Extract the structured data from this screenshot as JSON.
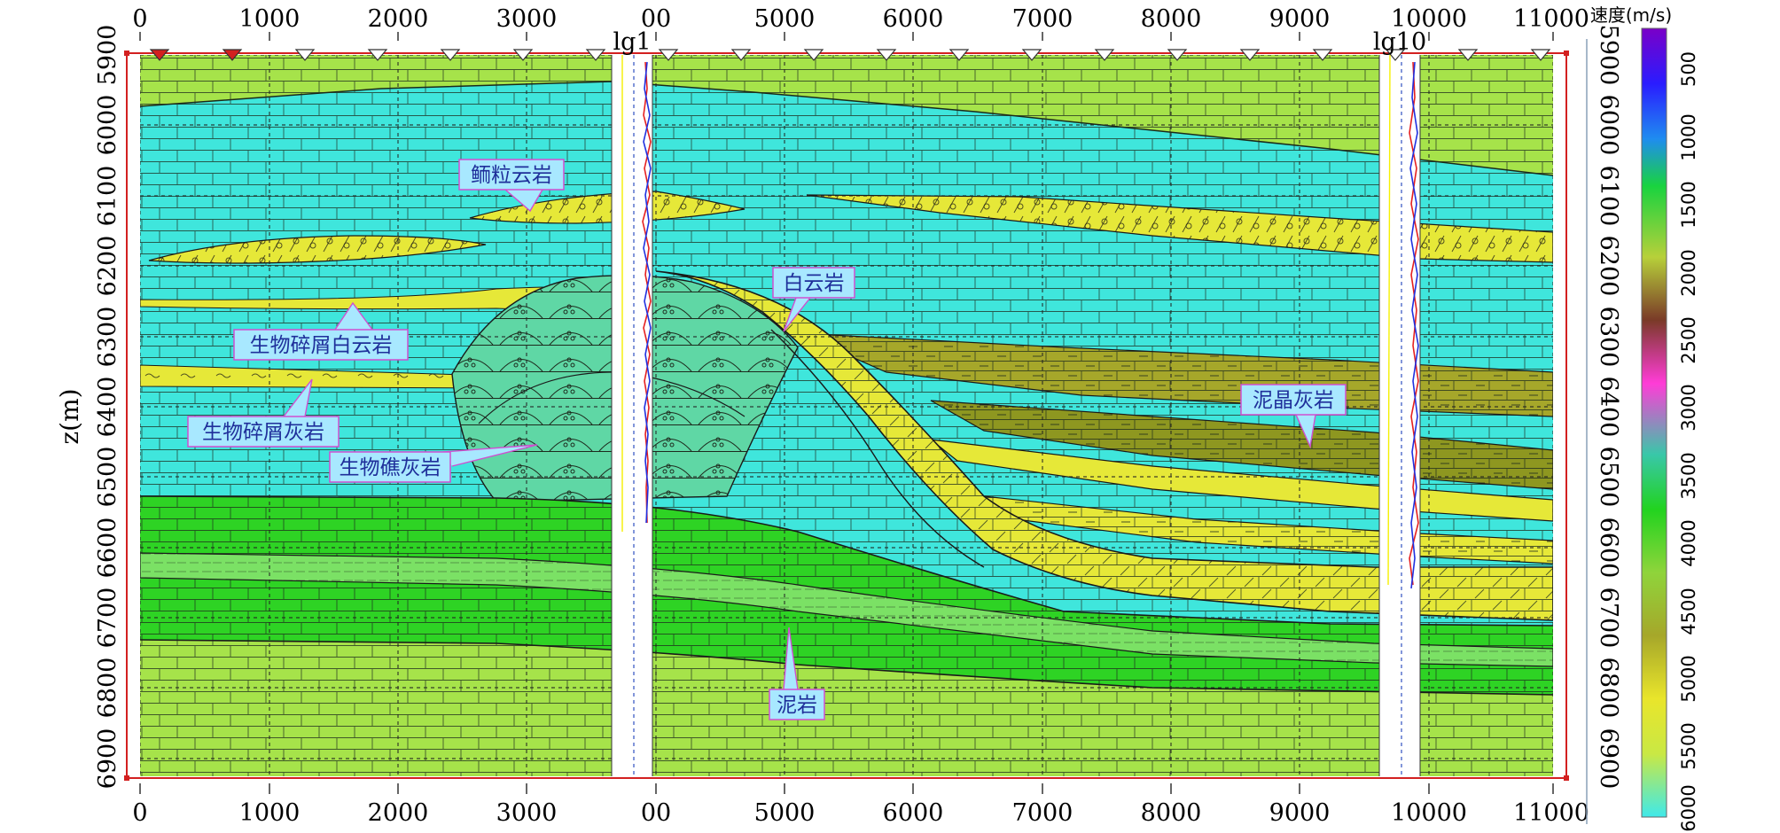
{
  "figure": {
    "y_axis_label": "z(m)",
    "x_ticks_left": [
      "0",
      "1000",
      "2000",
      "3000"
    ],
    "x_ticks_right": [
      "5000",
      "6000",
      "7000",
      "8000",
      "9000",
      "10000",
      "11000"
    ],
    "well_tick_label": "00",
    "y_ticks": [
      "5900",
      "6000",
      "6100",
      "6200",
      "6300",
      "6400",
      "6500",
      "6600",
      "6700",
      "6800",
      "6900"
    ],
    "wells": [
      {
        "name": "lg1"
      },
      {
        "name": "lg10"
      }
    ],
    "callouts": [
      {
        "text": "鲕粒云岩"
      },
      {
        "text": "白云岩"
      },
      {
        "text": "生物碎屑白云岩"
      },
      {
        "text": "生物碎屑灰岩"
      },
      {
        "text": "生物礁灰岩"
      },
      {
        "text": "泥晶灰岩"
      },
      {
        "text": "泥岩"
      }
    ]
  },
  "colorbar": {
    "title": "速度(m/s)",
    "ticks": [
      "500",
      "1000",
      "1500",
      "2000",
      "2500",
      "3000",
      "3500",
      "4000",
      "4500",
      "5000",
      "5500",
      "6000"
    ]
  },
  "colors": {
    "yellow_green": "#a6e34a",
    "cyan": "#3fe6dc",
    "yellow": "#e6e838",
    "green": "#2ed324",
    "light_green": "#7be165",
    "olive": "#a7b82c",
    "sea_green": "#5fd7a5",
    "frame_red": "#d32020"
  }
}
